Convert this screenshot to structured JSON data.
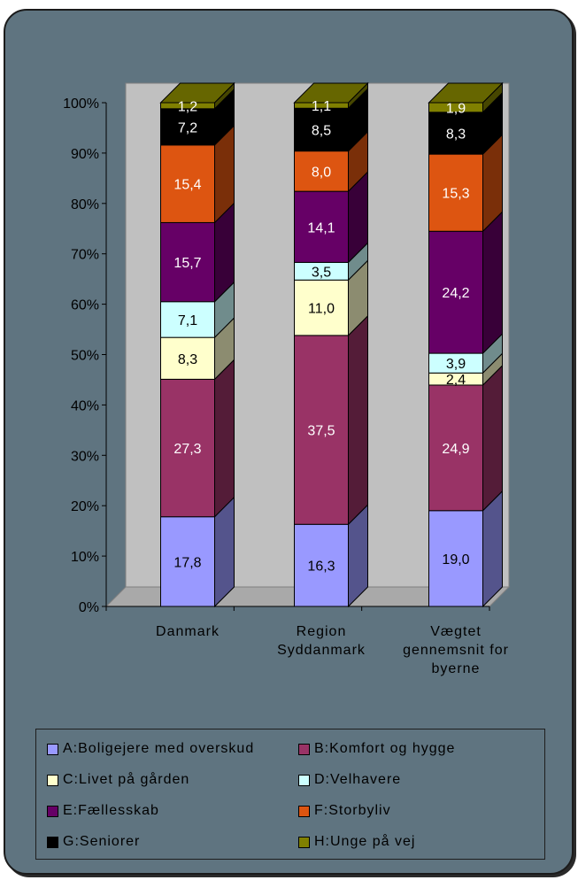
{
  "chart_data": {
    "type": "bar",
    "stacked": true,
    "percent": true,
    "three_d": true,
    "title": "",
    "xlabel": "",
    "ylabel": "",
    "ylim": [
      0,
      100
    ],
    "yticks": [
      "0%",
      "10%",
      "20%",
      "30%",
      "40%",
      "50%",
      "60%",
      "70%",
      "80%",
      "90%",
      "100%"
    ],
    "categories": [
      [
        "Danmark"
      ],
      [
        "Region",
        "Syddanmark"
      ],
      [
        "Vægtet",
        "gennemsnit for",
        "byerne"
      ]
    ],
    "series": [
      {
        "name": "A:Boligejere med overskud",
        "color": "#9999ff",
        "values": [
          17.8,
          16.3,
          19.0
        ],
        "labels": [
          "17,8",
          "16,3",
          "19,0"
        ]
      },
      {
        "name": "B:Komfort og hygge",
        "color": "#993366",
        "values": [
          27.3,
          37.5,
          24.9
        ],
        "labels": [
          "27,3",
          "37,5",
          "24,9"
        ]
      },
      {
        "name": "C:Livet på gården",
        "color": "#ffffcc",
        "values": [
          8.3,
          11.0,
          2.4
        ],
        "labels": [
          "8,3",
          "11,0",
          "2,4"
        ]
      },
      {
        "name": "D:Velhavere",
        "color": "#ccffff",
        "values": [
          7.1,
          3.5,
          3.9
        ],
        "labels": [
          "7,1",
          "3,5",
          "3,9"
        ]
      },
      {
        "name": "E:Fællesskab",
        "color": "#660066",
        "values": [
          15.7,
          14.1,
          24.2
        ],
        "labels": [
          "15,7",
          "14,1",
          "24,2"
        ]
      },
      {
        "name": "F:Storbyliv",
        "color": "#dd5511",
        "values": [
          15.4,
          8.0,
          15.3
        ],
        "labels": [
          "15,4",
          "8,0",
          "15,3"
        ]
      },
      {
        "name": "G:Seniorer",
        "color": "#000000",
        "values": [
          7.2,
          8.5,
          8.3
        ],
        "labels": [
          "7,2",
          "8,5",
          "8,3"
        ]
      },
      {
        "name": "H:Unge på vej",
        "color": "#808000",
        "values": [
          1.2,
          1.1,
          1.9
        ],
        "labels": [
          "1,2",
          "1,1",
          "1,9"
        ]
      }
    ],
    "legend_position": "bottom",
    "plot_background": "#c0c0c0",
    "panel_background": "#5f7480",
    "grid": false
  }
}
